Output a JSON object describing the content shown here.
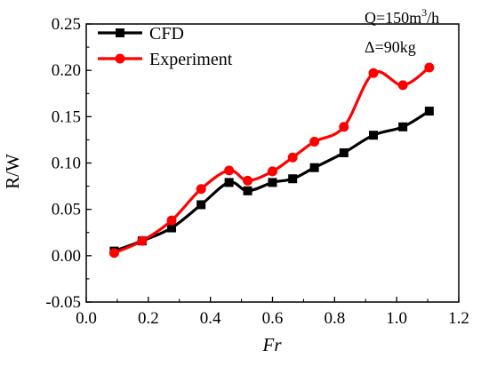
{
  "chart_data": {
    "type": "line",
    "xlabel": "Fr",
    "ylabel": "R/W",
    "xlim": [
      0.0,
      1.2
    ],
    "ylim": [
      -0.05,
      0.25
    ],
    "x_ticks": [
      "0.0",
      "0.2",
      "0.4",
      "0.6",
      "0.8",
      "1.0",
      "1.2"
    ],
    "y_ticks": [
      "-0.05",
      "0.00",
      "0.05",
      "0.10",
      "0.15",
      "0.20",
      "0.25"
    ],
    "legend_position": "top-left",
    "grid": false,
    "annotations": {
      "line1_prefix": "Q=150m",
      "line1_sup": "3",
      "line1_suffix": "/h",
      "line2": "Δ=90kg"
    },
    "series": [
      {
        "name": "CFD",
        "color": "#000000",
        "marker": "square",
        "x": [
          0.09,
          0.18,
          0.275,
          0.37,
          0.46,
          0.52,
          0.6,
          0.665,
          0.735,
          0.83,
          0.925,
          1.02,
          1.105
        ],
        "y": [
          0.005,
          0.016,
          0.03,
          0.055,
          0.079,
          0.07,
          0.079,
          0.083,
          0.095,
          0.111,
          0.13,
          0.139,
          0.156
        ]
      },
      {
        "name": "Experiment",
        "color": "#ff0000",
        "marker": "circle",
        "x": [
          0.09,
          0.18,
          0.275,
          0.37,
          0.46,
          0.52,
          0.6,
          0.665,
          0.735,
          0.83,
          0.925,
          1.02,
          1.105
        ],
        "y": [
          0.003,
          0.016,
          0.038,
          0.072,
          0.092,
          0.081,
          0.091,
          0.106,
          0.123,
          0.139,
          0.197,
          0.184,
          0.203
        ]
      }
    ]
  }
}
